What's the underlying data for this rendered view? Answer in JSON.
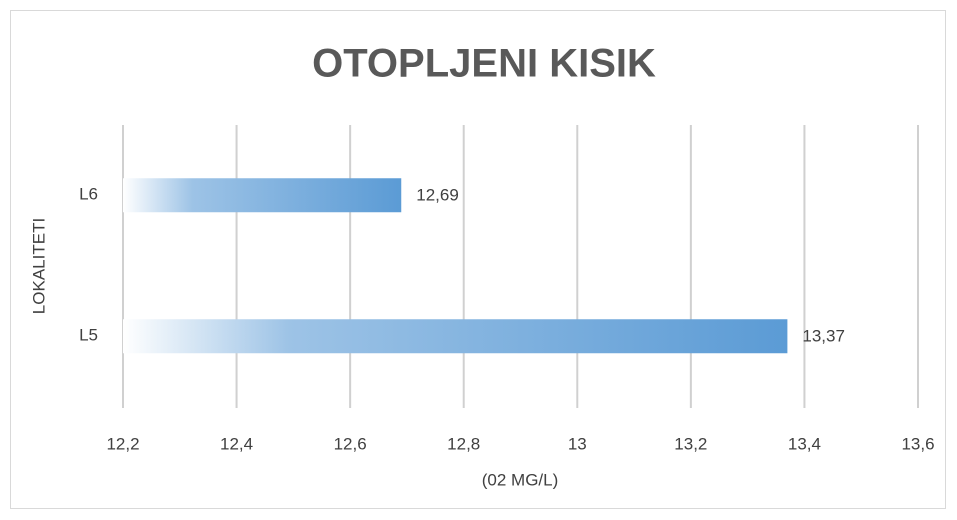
{
  "chart_data": {
    "type": "hbar",
    "title": "OTOPLJENI KISIK",
    "xlabel": "(02 MG/L)",
    "ylabel": "LOKALITETI",
    "categories": [
      "L6",
      "L5"
    ],
    "values": [
      12.69,
      13.37
    ],
    "value_labels": [
      "12,69",
      "13,37"
    ],
    "color": "#5b9bd5",
    "xlim": [
      12.2,
      13.6
    ],
    "xticks": [
      {
        "value": 12.2,
        "label": "12,2"
      },
      {
        "value": 12.4,
        "label": "12,4"
      },
      {
        "value": 12.6,
        "label": "12,6"
      },
      {
        "value": 12.8,
        "label": "12,8"
      },
      13,
      {
        "value": 13.2,
        "label": "13,2"
      },
      {
        "value": 13.4,
        "label": "13,4"
      },
      {
        "value": 13.6,
        "label": "13,6"
      }
    ],
    "grid": true
  }
}
